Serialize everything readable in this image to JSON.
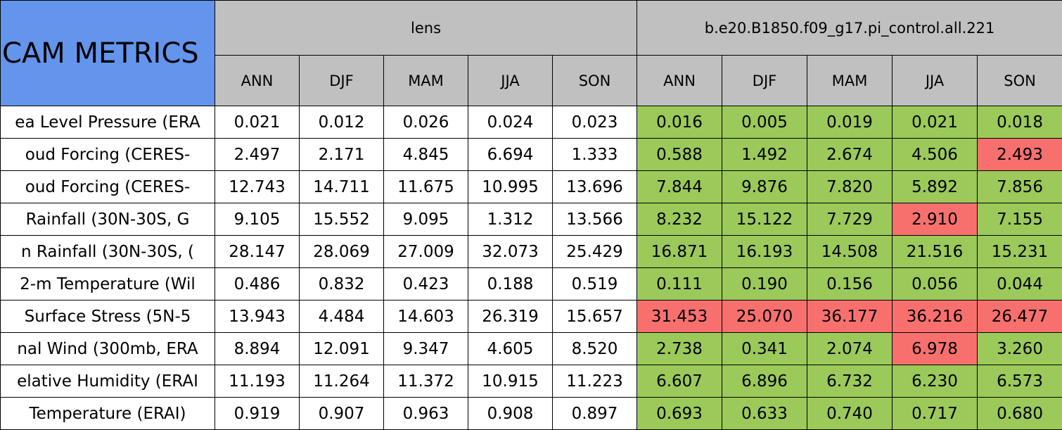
{
  "header": {
    "title": "CAM METRICS",
    "groups": [
      "lens",
      "b.e20.B1850.f09_g17.pi_control.all.221"
    ],
    "seasons": [
      [
        "ANN",
        "DJF",
        "MAM",
        "JJA",
        "SON"
      ],
      [
        "ANN",
        "DJF",
        "MAM",
        "JJA",
        "SON"
      ]
    ]
  },
  "table": {
    "rows": [
      {
        "label": "ea Level Pressure (ERA",
        "values": [
          "0.021",
          "0.012",
          "0.026",
          "0.024",
          "0.023",
          "0.016",
          "0.005",
          "0.019",
          "0.021",
          "0.018"
        ]
      },
      {
        "label": "oud Forcing (CERES-",
        "values": [
          "2.497",
          "2.171",
          "4.845",
          "6.694",
          "1.333",
          "0.588",
          "1.492",
          "2.674",
          "4.506",
          "2.493"
        ]
      },
      {
        "label": "oud Forcing (CERES-",
        "values": [
          "12.743",
          "14.711",
          "11.675",
          "10.995",
          "13.696",
          "7.844",
          "9.876",
          "7.820",
          "5.892",
          "7.856"
        ]
      },
      {
        "label": "Rainfall (30N-30S, G",
        "values": [
          "9.105",
          "15.552",
          "9.095",
          "1.312",
          "13.566",
          "8.232",
          "15.122",
          "7.729",
          "2.910",
          "7.155"
        ]
      },
      {
        "label": "n Rainfall (30N-30S, (",
        "values": [
          "28.147",
          "28.069",
          "27.009",
          "32.073",
          "25.429",
          "16.871",
          "16.193",
          "14.508",
          "21.516",
          "15.231"
        ]
      },
      {
        "label": "2-m Temperature (Wil",
        "values": [
          "0.486",
          "0.832",
          "0.423",
          "0.188",
          "0.519",
          "0.111",
          "0.190",
          "0.156",
          "0.056",
          "0.044"
        ]
      },
      {
        "label": "Surface Stress (5N-5",
        "values": [
          "13.943",
          "4.484",
          "14.603",
          "26.319",
          "15.657",
          "31.453",
          "25.070",
          "36.177",
          "36.216",
          "26.477"
        ]
      },
      {
        "label": "nal Wind (300mb, ERA",
        "values": [
          "8.894",
          "12.091",
          "9.347",
          "4.605",
          "8.520",
          "2.738",
          "0.341",
          "2.074",
          "6.978",
          "3.260"
        ]
      },
      {
        "label": "elative Humidity (ERAI",
        "values": [
          "11.193",
          "11.264",
          "11.372",
          "10.915",
          "11.223",
          "6.607",
          "6.896",
          "6.732",
          "6.230",
          "6.573"
        ]
      },
      {
        "label": "Temperature (ERAI)",
        "values": [
          "0.919",
          "0.907",
          "0.963",
          "0.908",
          "0.897",
          "0.693",
          "0.633",
          "0.740",
          "0.717",
          "0.680"
        ]
      }
    ]
  },
  "cell_colors": [
    [
      "#9BC95A",
      "#9BC95A",
      "#9BC95A",
      "#9BC95A",
      "#9BC95A"
    ],
    [
      "#9BC95A",
      "#9BC95A",
      "#9BC95A",
      "#9BC95A",
      "#F8706E"
    ],
    [
      "#9BC95A",
      "#9BC95A",
      "#9BC95A",
      "#9BC95A",
      "#9BC95A"
    ],
    [
      "#9BC95A",
      "#9BC95A",
      "#9BC95A",
      "#F8706E",
      "#9BC95A"
    ],
    [
      "#9BC95A",
      "#9BC95A",
      "#9BC95A",
      "#9BC95A",
      "#9BC95A"
    ],
    [
      "#9BC95A",
      "#9BC95A",
      "#9BC95A",
      "#9BC95A",
      "#9BC95A"
    ],
    [
      "#F8706E",
      "#F8706E",
      "#F8706E",
      "#F8706E",
      "#F8706E"
    ],
    [
      "#9BC95A",
      "#9BC95A",
      "#9BC95A",
      "#F8706E",
      "#9BC95A"
    ],
    [
      "#9BC95A",
      "#9BC95A",
      "#9BC95A",
      "#9BC95A",
      "#9BC95A"
    ],
    [
      "#9BC95A",
      "#9BC95A",
      "#9BC95A",
      "#9BC95A",
      "#9BC95A"
    ]
  ]
}
